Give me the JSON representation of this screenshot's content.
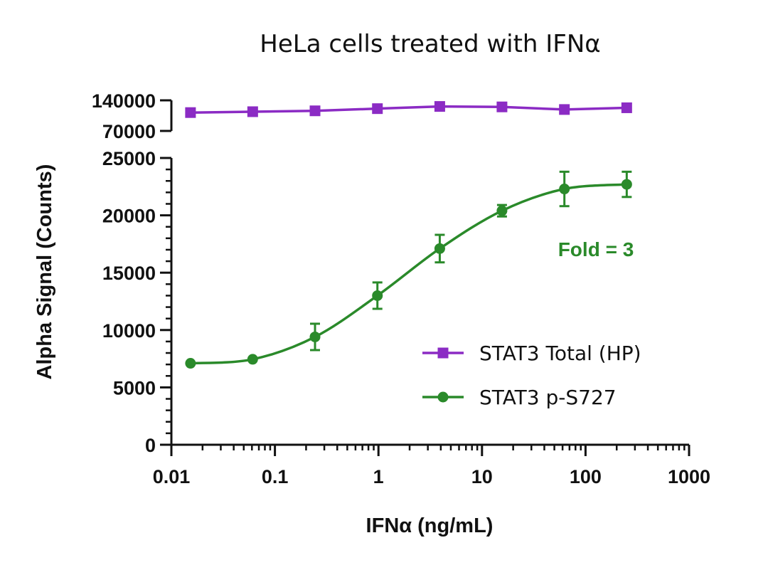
{
  "chart_data": {
    "type": "line",
    "title": "HeLa cells treated with IFNα",
    "xlabel": "IFNα (ng/mL)",
    "ylabel": "Alpha Signal (Counts)",
    "x_scale": "log",
    "xlim": [
      0.01,
      1000
    ],
    "x_ticks": [
      "0.01",
      "0.1",
      "1",
      "10",
      "100",
      "1000"
    ],
    "y_axis_break": true,
    "upper_segment": {
      "ylim": [
        70000,
        140000
      ],
      "ticks": [
        "140000",
        "70000"
      ]
    },
    "lower_segment": {
      "ylim": [
        0,
        25000
      ],
      "ticks": [
        "25000",
        "20000",
        "15000",
        "10000",
        "5000",
        "0"
      ]
    },
    "x": [
      0.0153,
      0.061,
      0.244,
      0.977,
      3.91,
      15.6,
      62.5,
      250
    ],
    "series": [
      {
        "name": "STAT3 Total (HP)",
        "marker": "square",
        "color": "#8B2BC4",
        "values": [
          112000,
          114000,
          116000,
          121000,
          126000,
          125000,
          119000,
          123000
        ]
      },
      {
        "name": "STAT3 p-S727",
        "marker": "circle",
        "color": "#2A8A2A",
        "values": [
          7100,
          7450,
          9400,
          13000,
          17100,
          20400,
          22300,
          22700
        ],
        "errors": [
          150,
          150,
          1150,
          1150,
          1200,
          500,
          1500,
          1100
        ]
      }
    ],
    "legend_position": "lower-right",
    "annotation": {
      "text": "Fold = 3",
      "color": "#2A8A2A"
    }
  }
}
